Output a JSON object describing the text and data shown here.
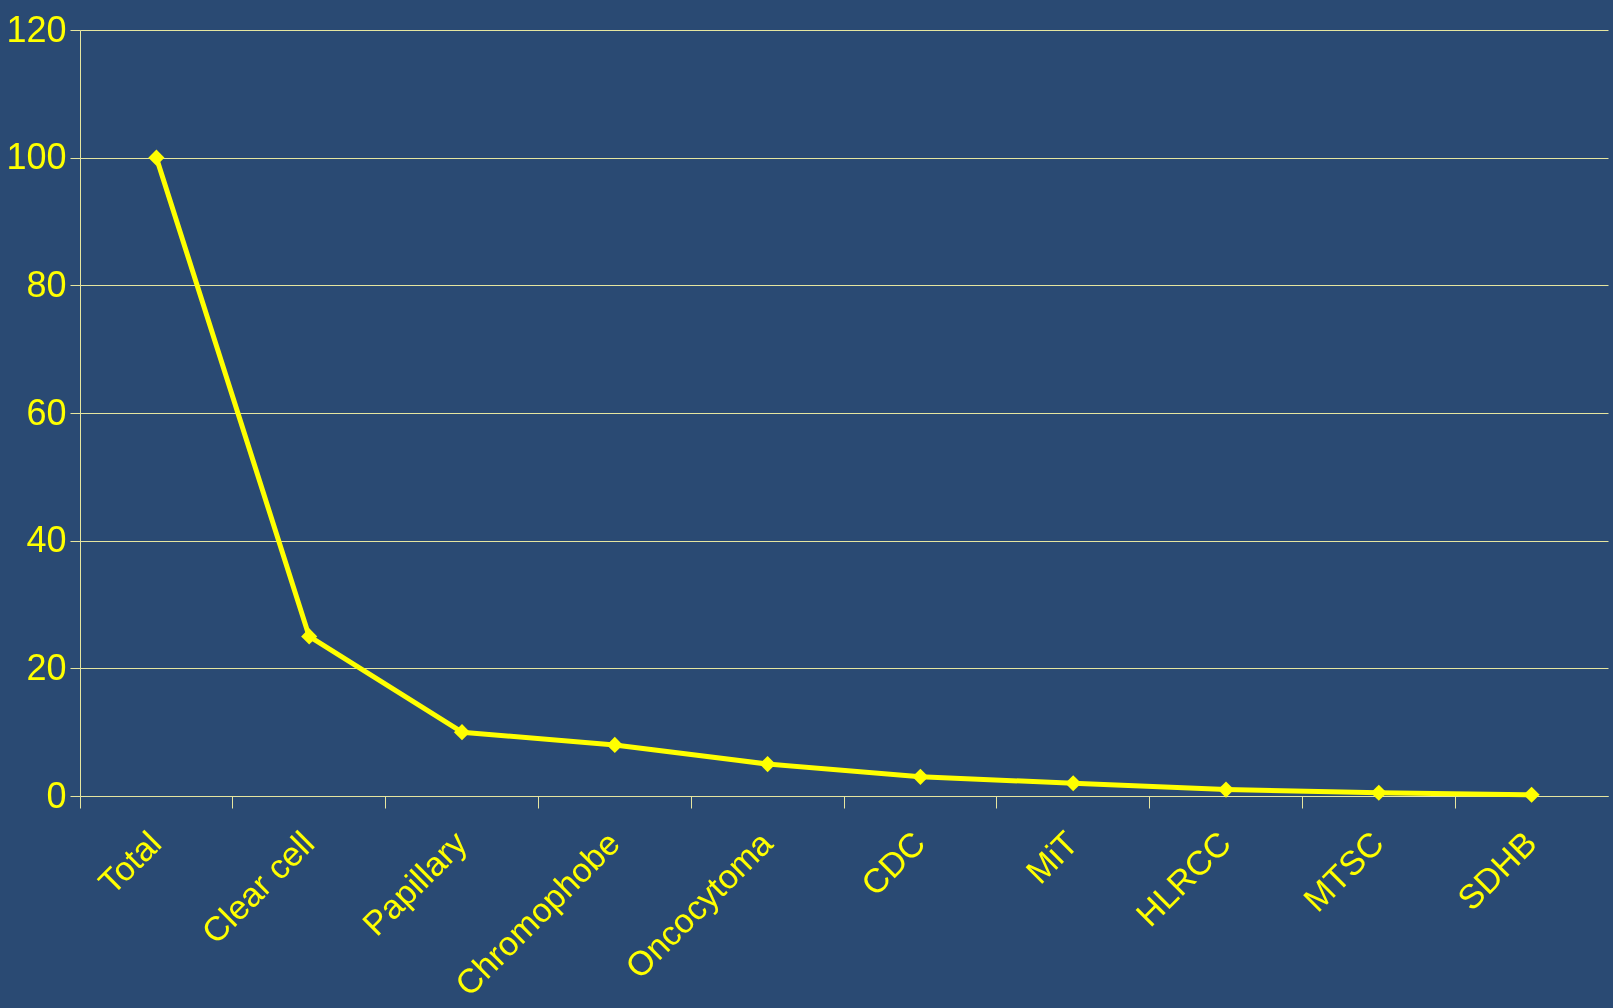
{
  "chart_data": {
    "type": "line",
    "categories": [
      "Total",
      "Clear cell",
      "Papillary",
      "Chromophobe",
      "Oncocytoma",
      "CDC",
      "MiT",
      "HLRCC",
      "MTSC",
      "SDHB"
    ],
    "series": [
      {
        "color": "#ffff00",
        "values": [
          100,
          25,
          10,
          8,
          5,
          3,
          2,
          1,
          0.5,
          0.2
        ]
      }
    ],
    "ylim": [
      0,
      120
    ],
    "yticks": [
      0,
      20,
      40,
      60,
      80,
      100,
      120
    ],
    "grid": "y",
    "marker": "diamond",
    "line_style": "solid"
  }
}
